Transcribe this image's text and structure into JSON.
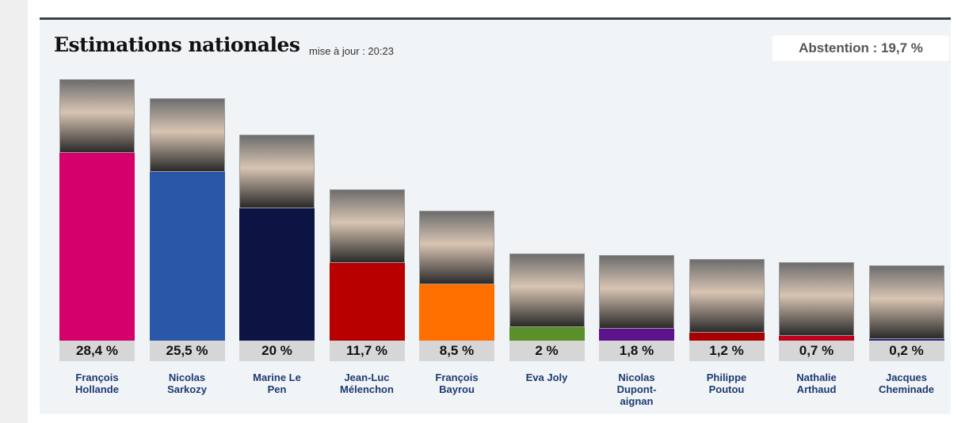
{
  "chart_data": {
    "type": "bar",
    "title": "Estimations nationales",
    "subtitle": "mise à jour : 20:23",
    "annotation": "Abstention : 19,7 %",
    "categories": [
      "François Hollande",
      "Nicolas Sarkozy",
      "Marine Le Pen",
      "Jean-Luc Mélenchon",
      "François Bayrou",
      "Eva Joly",
      "Nicolas Dupont-aignan",
      "Philippe Poutou",
      "Nathalie Arthaud",
      "Jacques Cheminade"
    ],
    "values": [
      28.4,
      25.5,
      20,
      11.7,
      8.5,
      2,
      1.8,
      1.2,
      0.7,
      0.2
    ],
    "value_labels": [
      "28,4 %",
      "25,5 %",
      "20 %",
      "11,7 %",
      "8,5 %",
      "2 %",
      "1,8 %",
      "1,2 %",
      "0,7 %",
      "0,2 %"
    ],
    "colors": [
      "#d6006a",
      "#2b57a8",
      "#0b1442",
      "#b80000",
      "#ff6f00",
      "#5b8f2a",
      "#5e128c",
      "#a80000",
      "#c0001c",
      "#2a2a7a"
    ]
  }
}
